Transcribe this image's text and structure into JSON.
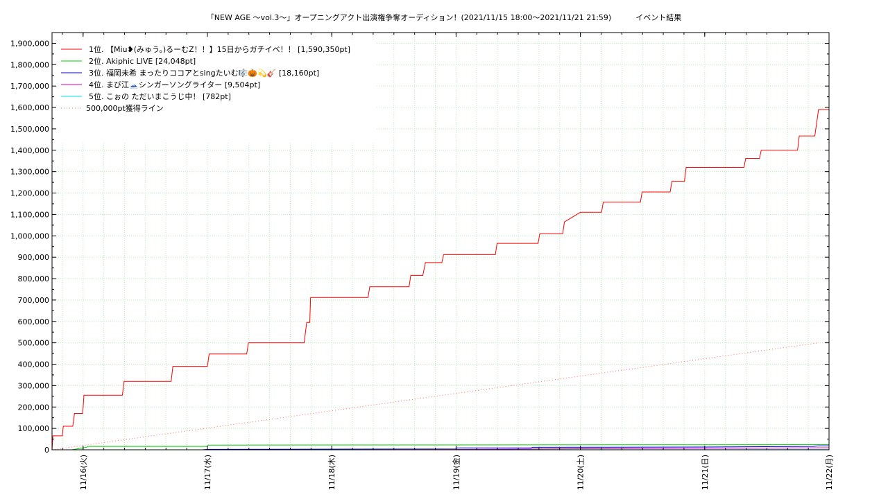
{
  "chart_data": {
    "type": "line",
    "title": "「NEW AGE 〜vol.3〜」オープニングアクト出演権争奪オーディション！(2021/11/15 18:00〜2021/11/21 21:59)",
    "subtitle": "イベント結果",
    "xlabel": "",
    "ylabel": "",
    "grid": true,
    "legend_position": "top-left",
    "x_range": [
      "2021-11-15 18:00",
      "2021-11-22 00:00"
    ],
    "ylim": [
      0,
      1950000
    ],
    "y_ticks": [
      0,
      100000,
      200000,
      300000,
      400000,
      500000,
      600000,
      700000,
      800000,
      900000,
      1000000,
      1100000,
      1200000,
      1300000,
      1400000,
      1500000,
      1600000,
      1700000,
      1800000,
      1900000
    ],
    "y_tick_labels": [
      "0",
      "100,000",
      "200,000",
      "300,000",
      "400,000",
      "500,000",
      "600,000",
      "700,000",
      "800,000",
      "900,000",
      "1,000,000",
      "1,100,000",
      "1,200,000",
      "1,300,000",
      "1,400,000",
      "1,500,000",
      "1,600,000",
      "1,700,000",
      "1,800,000",
      "1,900,000"
    ],
    "x_ticks": [
      "2021-11-16 00:00",
      "2021-11-17 00:00",
      "2021-11-18 00:00",
      "2021-11-19 00:00",
      "2021-11-20 00:00",
      "2021-11-21 00:00",
      "2021-11-22 00:00"
    ],
    "x_tick_labels": [
      "11/16(火)",
      "11/17(水)",
      "11/18(木)",
      "11/19(金)",
      "11/20(土)",
      "11/21(日)",
      "11/22(月)"
    ],
    "series": [
      {
        "name": "1位. 【Miu❥(みゅう。)るーむZ！！】15日からガチイベ！！ [1,590,350pt]",
        "color": "#ff0000",
        "dash": "solid",
        "x": [
          "2021-11-15 18:00",
          "2021-11-15 18:10",
          "2021-11-15 18:20",
          "2021-11-15 20:00",
          "2021-11-15 20:10",
          "2021-11-15 22:00",
          "2021-11-15 22:20",
          "2021-11-15 23:55",
          "2021-11-16 00:10",
          "2021-11-16 07:35",
          "2021-11-16 07:55",
          "2021-11-16 17:00",
          "2021-11-16 17:20",
          "2021-11-17 00:00",
          "2021-11-17 00:20",
          "2021-11-17 07:35",
          "2021-11-17 07:55",
          "2021-11-17 18:40",
          "2021-11-17 19:10",
          "2021-11-17 19:45",
          "2021-11-17 19:55",
          "2021-11-18 00:00",
          "2021-11-18 07:00",
          "2021-11-18 07:20",
          "2021-11-18 14:55",
          "2021-11-18 15:15",
          "2021-11-18 17:35",
          "2021-11-18 18:05",
          "2021-11-18 21:15",
          "2021-11-18 21:35",
          "2021-11-19 07:35",
          "2021-11-19 07:55",
          "2021-11-19 15:50",
          "2021-11-19 16:10",
          "2021-11-19 20:35",
          "2021-11-19 20:55",
          "2021-11-20 00:00",
          "2021-11-20 04:05",
          "2021-11-20 04:25",
          "2021-11-20 11:35",
          "2021-11-20 11:55",
          "2021-11-20 17:20",
          "2021-11-20 17:40",
          "2021-11-20 20:05",
          "2021-11-20 20:25",
          "2021-11-21 00:00",
          "2021-11-21 07:35",
          "2021-11-21 07:55",
          "2021-11-21 10:35",
          "2021-11-21 10:55",
          "2021-11-21 17:55",
          "2021-11-21 18:15",
          "2021-11-21 21:15",
          "2021-11-21 21:59",
          "2021-11-22 00:00"
        ],
        "y": [
          0,
          65000,
          65000,
          65000,
          110000,
          110000,
          170000,
          170000,
          255000,
          255000,
          320000,
          320000,
          390000,
          390000,
          448000,
          448000,
          500000,
          500000,
          595000,
          595000,
          712000,
          712000,
          712000,
          762000,
          762000,
          815000,
          815000,
          875000,
          875000,
          912000,
          912000,
          965000,
          965000,
          1010000,
          1010000,
          1065000,
          1110000,
          1110000,
          1157000,
          1157000,
          1205000,
          1205000,
          1255000,
          1255000,
          1320000,
          1320000,
          1320000,
          1362000,
          1362000,
          1400000,
          1400000,
          1467000,
          1467000,
          1590350,
          1590350
        ]
      },
      {
        "name": "2位. Akiphic LIVE [24,048pt]",
        "color": "#00cc00",
        "dash": "solid",
        "x": [
          "2021-11-15 18:00",
          "2021-11-15 21:50",
          "2021-11-16 00:40",
          "2021-11-16 01:00",
          "2021-11-17 00:00",
          "2021-11-17 00:10",
          "2021-11-21 21:59",
          "2021-11-22 00:00"
        ],
        "y": [
          0,
          0,
          12000,
          16000,
          16000,
          22000,
          24048,
          24048
        ]
      },
      {
        "name": "3位. 福岡未希 まったりココアとsingたいむ🎼🎃💫🎸 [18,160pt]",
        "color": "#0000cc",
        "dash": "solid",
        "x": [
          "2021-11-15 18:00",
          "2021-11-16 23:00",
          "2021-11-17 00:00",
          "2021-11-19 00:00",
          "2021-11-19 00:10",
          "2021-11-19 14:30",
          "2021-11-19 14:45",
          "2021-11-21 00:00",
          "2021-11-21 21:00",
          "2021-11-21 21:59",
          "2021-11-22 00:00"
        ],
        "y": [
          0,
          0,
          2000,
          4000,
          9000,
          9000,
          11500,
          13000,
          16000,
          18160,
          18160
        ]
      },
      {
        "name": "4位. まび江🗻シンガーソングライター [9,504pt]",
        "color": "#cc00cc",
        "dash": "solid",
        "x": [
          "2021-11-15 18:00",
          "2021-11-18 00:00",
          "2021-11-19 00:00",
          "2021-11-20 00:00",
          "2021-11-21 00:00",
          "2021-11-21 21:59",
          "2021-11-22 00:00"
        ],
        "y": [
          0,
          0,
          2000,
          5000,
          7000,
          9504,
          9504
        ]
      },
      {
        "name": "5位. こぉの ただいまこうじ中！ [782pt]",
        "color": "#00dddd",
        "dash": "solid",
        "x": [
          "2021-11-15 18:00",
          "2021-11-21 21:59",
          "2021-11-22 00:00"
        ],
        "y": [
          0,
          782,
          782
        ]
      },
      {
        "name": "500,000pt獲得ライン",
        "color": "#ff6666",
        "dash": "dotted",
        "x": [
          "2021-11-15 18:00",
          "2021-11-21 21:59"
        ],
        "y": [
          0,
          500000
        ]
      }
    ]
  }
}
